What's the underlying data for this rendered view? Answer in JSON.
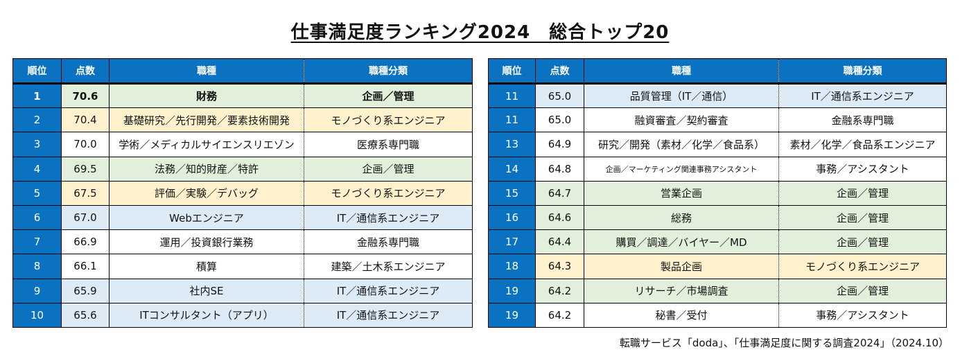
{
  "title": "仕事満足度ランキング2024　総合トップ20",
  "headers": {
    "rank": "順位",
    "score": "点数",
    "job": "職種",
    "category": "職種分類"
  },
  "left_rows": [
    {
      "rank": "1",
      "score": "70.6",
      "job": "財務",
      "category": "企画／管理",
      "color": "green",
      "bold": true
    },
    {
      "rank": "2",
      "score": "70.4",
      "job": "基礎研究／先行開発／要素技術開発",
      "category": "モノづくり系エンジニア",
      "color": "yellow"
    },
    {
      "rank": "3",
      "score": "70.0",
      "job": "学術／メディカルサイエンスリエゾン",
      "category": "医療系専門職",
      "color": "white"
    },
    {
      "rank": "4",
      "score": "69.5",
      "job": "法務／知的財産／特許",
      "category": "企画／管理",
      "color": "green"
    },
    {
      "rank": "5",
      "score": "67.5",
      "job": "評価／実験／デバッグ",
      "category": "モノづくり系エンジニア",
      "color": "yellow"
    },
    {
      "rank": "6",
      "score": "67.0",
      "job": "Webエンジニア",
      "category": "IT／通信系エンジニア",
      "color": "blue"
    },
    {
      "rank": "7",
      "score": "66.9",
      "job": "運用／投資銀行業務",
      "category": "金融系専門職",
      "color": "white"
    },
    {
      "rank": "8",
      "score": "66.1",
      "job": "積算",
      "category": "建築／土木系エンジニア",
      "color": "white"
    },
    {
      "rank": "9",
      "score": "65.9",
      "job": "社内SE",
      "category": "IT／通信系エンジニア",
      "color": "blue"
    },
    {
      "rank": "10",
      "score": "65.6",
      "job": "ITコンサルタント（アプリ）",
      "category": "IT／通信系エンジニア",
      "color": "blue"
    }
  ],
  "right_rows": [
    {
      "rank": "11",
      "score": "65.0",
      "job": "品質管理（IT／通信）",
      "category": "IT／通信系エンジニア",
      "color": "blue"
    },
    {
      "rank": "11",
      "score": "65.0",
      "job": "融資審査／契約審査",
      "category": "金融系専門職",
      "color": "white"
    },
    {
      "rank": "13",
      "score": "64.9",
      "job": "研究／開発（素材／化学／食品系）",
      "category": "素材／化学／食品系エンジニア",
      "color": "white"
    },
    {
      "rank": "14",
      "score": "64.8",
      "job": "企画／マーケティング関連事務アシスタント",
      "category": "事務／アシスタント",
      "color": "white",
      "small": true
    },
    {
      "rank": "15",
      "score": "64.7",
      "job": "営業企画",
      "category": "企画／管理",
      "color": "green"
    },
    {
      "rank": "16",
      "score": "64.6",
      "job": "総務",
      "category": "企画／管理",
      "color": "green"
    },
    {
      "rank": "17",
      "score": "64.4",
      "job": "購買／調達／バイヤー／MD",
      "category": "企画／管理",
      "color": "green"
    },
    {
      "rank": "18",
      "score": "64.3",
      "job": "製品企画",
      "category": "モノづくり系エンジニア",
      "color": "yellow"
    },
    {
      "rank": "19",
      "score": "64.2",
      "job": "リサーチ／市場調査",
      "category": "企画／管理",
      "color": "green"
    },
    {
      "rank": "19",
      "score": "64.2",
      "job": "秘書／受付",
      "category": "事務／アシスタント",
      "color": "white"
    }
  ],
  "source": "転職サービス「doda」、「仕事満足度に関する調査2024」（2024.10）"
}
